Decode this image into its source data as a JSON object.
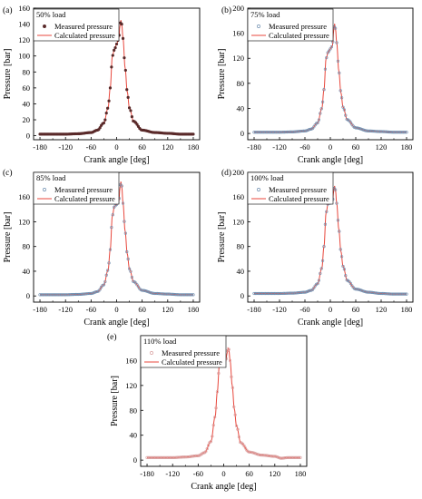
{
  "chart_data": [
    {
      "type": "line",
      "panel_label": "(a)",
      "annotation": "50% load",
      "xlabel": "Crank angle [deg]",
      "ylabel": "Pressure [bar]",
      "xlim": [
        -195,
        195
      ],
      "ylim": [
        -5,
        160
      ],
      "xticks": [
        -180,
        -120,
        -60,
        0,
        60,
        120,
        180
      ],
      "yticks": [
        0,
        20,
        40,
        60,
        80,
        100,
        120,
        140,
        160
      ],
      "legend": [
        "Measured pressure",
        "Calculated pressure"
      ],
      "legend_position": "top-left",
      "marker_style": "dark",
      "peak_pressure": 145,
      "base_pressure": 2,
      "series": [
        {
          "name": "Measured pressure",
          "style": "markers",
          "color": "#5a2a2a",
          "x": [
            -180,
            -150,
            -120,
            -90,
            -60,
            -45,
            -30,
            -20,
            -15,
            -10,
            -5,
            0,
            5,
            8,
            10,
            12,
            15,
            20,
            25,
            30,
            40,
            60,
            90,
            120,
            150,
            180
          ],
          "y": [
            2,
            2,
            2,
            2.5,
            4,
            7,
            16,
            35,
            60,
            100,
            108,
            115,
            122,
            138,
            145,
            140,
            122,
            85,
            55,
            35,
            18,
            7,
            4,
            3,
            2,
            2
          ]
        },
        {
          "name": "Calculated pressure",
          "style": "line",
          "color": "#e8473c",
          "x": [
            -180,
            -150,
            -120,
            -90,
            -60,
            -45,
            -30,
            -20,
            -15,
            -10,
            -5,
            0,
            5,
            8,
            10,
            12,
            15,
            20,
            25,
            30,
            40,
            60,
            90,
            120,
            150,
            180
          ],
          "y": [
            2,
            2,
            2,
            2.5,
            4,
            7,
            16,
            35,
            60,
            100,
            108,
            115,
            122,
            138,
            145,
            140,
            122,
            85,
            55,
            35,
            18,
            7,
            4,
            3,
            2,
            2
          ]
        }
      ]
    },
    {
      "type": "line",
      "panel_label": "(b)",
      "annotation": "75% load",
      "xlabel": "Crank angle [deg]",
      "ylabel": "Pressure [bar]",
      "xlim": [
        -195,
        195
      ],
      "ylim": [
        -10,
        200
      ],
      "xticks": [
        -180,
        -120,
        -60,
        0,
        60,
        120,
        180
      ],
      "yticks": [
        0,
        40,
        80,
        120,
        160,
        200
      ],
      "legend": [
        "Measured pressure",
        "Calculated pressure"
      ],
      "legend_position": "top-right",
      "marker_style": "light",
      "peak_pressure": 175,
      "base_pressure": 2,
      "series": [
        {
          "name": "Measured pressure",
          "style": "markers",
          "color": "#6f8fb0",
          "x": [
            -180,
            -150,
            -120,
            -90,
            -60,
            -45,
            -30,
            -20,
            -15,
            -10,
            -5,
            0,
            5,
            8,
            10,
            12,
            15,
            20,
            25,
            30,
            40,
            60,
            90,
            120,
            150,
            180
          ],
          "y": [
            2,
            2,
            2,
            2.5,
            4,
            7,
            17,
            40,
            70,
            120,
            130,
            135,
            140,
            165,
            175,
            168,
            145,
            100,
            65,
            42,
            22,
            9,
            4,
            3,
            2,
            2
          ]
        },
        {
          "name": "Calculated pressure",
          "style": "line",
          "color": "#e8473c",
          "x": [
            -180,
            -150,
            -120,
            -90,
            -60,
            -45,
            -30,
            -20,
            -15,
            -10,
            -5,
            0,
            5,
            8,
            10,
            12,
            15,
            20,
            25,
            30,
            40,
            60,
            90,
            120,
            150,
            180
          ],
          "y": [
            2,
            2,
            2,
            2.5,
            4,
            7,
            17,
            40,
            70,
            120,
            130,
            135,
            140,
            165,
            175,
            168,
            145,
            100,
            65,
            42,
            22,
            9,
            4,
            3,
            2,
            2
          ]
        }
      ]
    },
    {
      "type": "line",
      "panel_label": "(c)",
      "annotation": "85% load",
      "xlabel": "Crank angle [deg]",
      "ylabel": "Pressure [bar]",
      "xlim": [
        -195,
        195
      ],
      "ylim": [
        -10,
        200
      ],
      "xticks": [
        -180,
        -120,
        -60,
        0,
        60,
        120,
        180
      ],
      "yticks": [
        0,
        40,
        80,
        120,
        160
      ],
      "legend": [
        "Measured pressure",
        "Calculated pressure"
      ],
      "legend_position": "top-left",
      "marker_style": "light",
      "peak_pressure": 185,
      "base_pressure": 2,
      "series": [
        {
          "name": "Measured pressure",
          "style": "markers",
          "color": "#6f8fb0",
          "x": [
            -180,
            -150,
            -120,
            -90,
            -60,
            -45,
            -30,
            -20,
            -15,
            -10,
            -5,
            0,
            5,
            8,
            10,
            12,
            15,
            20,
            25,
            30,
            40,
            60,
            90,
            120,
            150,
            180
          ],
          "y": [
            2,
            2,
            2,
            2.5,
            4,
            7,
            18,
            42,
            75,
            130,
            145,
            148,
            152,
            175,
            185,
            178,
            150,
            105,
            68,
            44,
            23,
            9,
            4,
            3,
            2,
            2
          ]
        },
        {
          "name": "Calculated pressure",
          "style": "line",
          "color": "#e8473c",
          "x": [
            -180,
            -150,
            -120,
            -90,
            -60,
            -45,
            -30,
            -20,
            -15,
            -10,
            -5,
            0,
            5,
            8,
            10,
            12,
            15,
            20,
            25,
            30,
            40,
            60,
            90,
            120,
            150,
            180
          ],
          "y": [
            2,
            2,
            2,
            2.5,
            4,
            7,
            18,
            42,
            75,
            130,
            145,
            148,
            152,
            175,
            185,
            178,
            150,
            105,
            68,
            44,
            23,
            9,
            4,
            3,
            2,
            2
          ]
        }
      ]
    },
    {
      "type": "line",
      "panel_label": "(d)",
      "annotation": "100% load",
      "xlabel": "Crank angle [deg]",
      "ylabel": "Pressure [bar]",
      "xlim": [
        -195,
        195
      ],
      "ylim": [
        -10,
        200
      ],
      "xticks": [
        -180,
        -120,
        -60,
        0,
        60,
        120,
        180
      ],
      "yticks": [
        0,
        40,
        80,
        120,
        160,
        200
      ],
      "legend": [
        "Measured pressure",
        "Calculated pressure"
      ],
      "legend_position": "top-left",
      "marker_style": "light",
      "peak_pressure": 178,
      "base_pressure": 3,
      "series": [
        {
          "name": "Measured pressure",
          "style": "markers",
          "color": "#6f8fb0",
          "x": [
            -180,
            -150,
            -120,
            -90,
            -60,
            -45,
            -30,
            -20,
            -15,
            -10,
            -5,
            0,
            5,
            8,
            10,
            12,
            15,
            20,
            25,
            30,
            40,
            60,
            90,
            120,
            150,
            180
          ],
          "y": [
            4,
            4,
            4,
            4.5,
            6,
            9,
            20,
            45,
            80,
            135,
            150,
            150,
            152,
            170,
            178,
            172,
            150,
            108,
            72,
            48,
            25,
            11,
            6,
            4,
            3,
            3
          ]
        },
        {
          "name": "Calculated pressure",
          "style": "line",
          "color": "#e8473c",
          "x": [
            -180,
            -150,
            -120,
            -90,
            -60,
            -45,
            -30,
            -20,
            -15,
            -10,
            -5,
            0,
            5,
            8,
            10,
            12,
            15,
            20,
            25,
            30,
            40,
            60,
            90,
            120,
            150,
            180
          ],
          "y": [
            4,
            4,
            4,
            4.5,
            6,
            9,
            20,
            45,
            80,
            135,
            150,
            150,
            152,
            170,
            178,
            172,
            150,
            108,
            72,
            48,
            25,
            11,
            6,
            4,
            3,
            3
          ]
        }
      ]
    },
    {
      "type": "line",
      "panel_label": "(e)",
      "annotation": "110% load",
      "xlabel": "Crank angle [deg]",
      "ylabel": "Pressure [bar]",
      "xlim": [
        -195,
        195
      ],
      "ylim": [
        -10,
        200
      ],
      "xticks": [
        -180,
        -120,
        -60,
        0,
        60,
        120,
        180
      ],
      "yticks": [
        0,
        40,
        80,
        120,
        160
      ],
      "legend": [
        "Measured pressure",
        "Calculated pressure"
      ],
      "legend_position": "top-left",
      "marker_style": "light",
      "peak_pressure": 180,
      "base_pressure": 4,
      "series": [
        {
          "name": "Measured pressure",
          "style": "markers",
          "color": "#d9a0a0",
          "x": [
            -180,
            -150,
            -120,
            -90,
            -60,
            -45,
            -30,
            -20,
            -15,
            -10,
            -5,
            0,
            5,
            8,
            10,
            12,
            15,
            20,
            25,
            30,
            40,
            60,
            90,
            120,
            135,
            150,
            180
          ],
          "y": [
            4,
            4,
            4,
            5,
            7,
            12,
            30,
            70,
            110,
            155,
            168,
            170,
            160,
            172,
            180,
            178,
            160,
            120,
            82,
            55,
            28,
            13,
            8,
            6,
            3,
            4,
            4
          ]
        },
        {
          "name": "Calculated pressure",
          "style": "line",
          "color": "#e8473c",
          "x": [
            -180,
            -150,
            -120,
            -90,
            -60,
            -45,
            -30,
            -20,
            -15,
            -10,
            -5,
            0,
            5,
            8,
            10,
            12,
            15,
            20,
            25,
            30,
            40,
            60,
            90,
            120,
            135,
            150,
            180
          ],
          "y": [
            4,
            4,
            4,
            5,
            7,
            12,
            30,
            70,
            110,
            155,
            168,
            170,
            160,
            172,
            180,
            178,
            160,
            120,
            82,
            55,
            28,
            13,
            8,
            6,
            3,
            4,
            4
          ]
        }
      ]
    }
  ]
}
